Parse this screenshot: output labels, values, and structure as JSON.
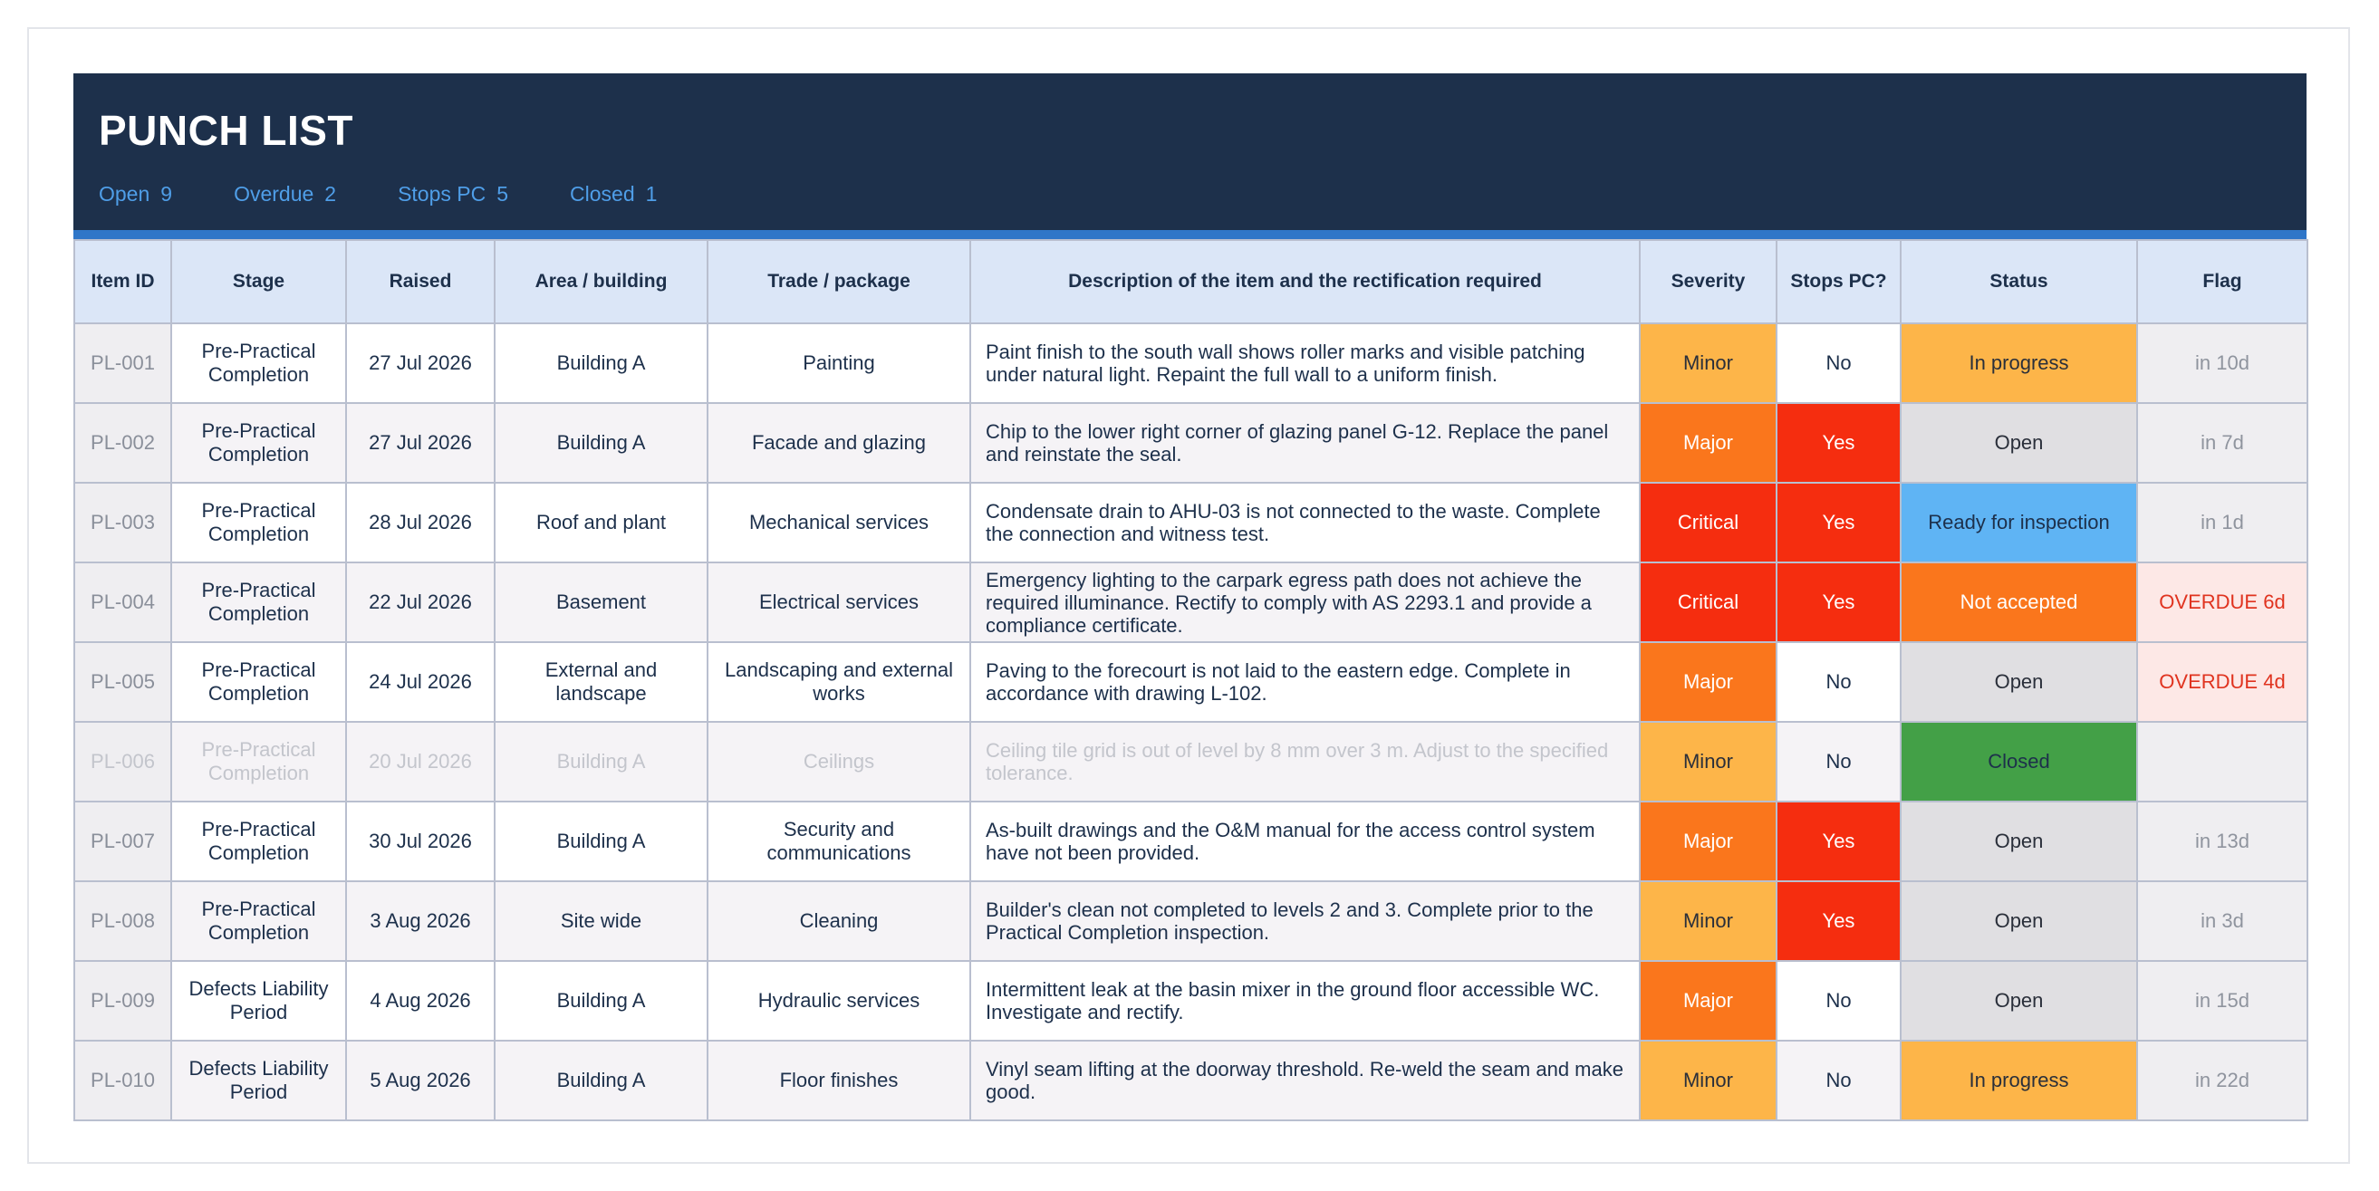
{
  "header": {
    "title": "PUNCH LIST",
    "stats": [
      {
        "label": "Open",
        "value": "9"
      },
      {
        "label": "Overdue",
        "value": "2"
      },
      {
        "label": "Stops PC",
        "value": "5"
      },
      {
        "label": "Closed",
        "value": "1"
      }
    ]
  },
  "colors": {
    "banner": "#1d304b",
    "accent": "#2f76c8",
    "stat_text": "#4f9ee8",
    "minor": "#fdb549",
    "major": "#fa761c",
    "critical": "#f52d0f",
    "open": "#e0dfe2",
    "ready": "#5fb4f4",
    "closed": "#43a047",
    "overdue_text": "#e0331f"
  },
  "table": {
    "columns": [
      "Item ID",
      "Stage",
      "Raised",
      "Area / building",
      "Trade / package",
      "Description of the item and the rectification required",
      "Severity",
      "Stops PC?",
      "Status",
      "Flag"
    ],
    "rows": [
      {
        "id": "PL-001",
        "stage": "Pre-Practical Completion",
        "raised": "27 Jul 2026",
        "area": "Building A",
        "trade": "Painting",
        "description": "Paint finish to the south wall shows roller marks and visible patching under natural light. Repaint the full wall to a uniform finish.",
        "severity": "Minor",
        "stops_pc": "No",
        "status": "In progress",
        "flag": "in 10d"
      },
      {
        "id": "PL-002",
        "stage": "Pre-Practical Completion",
        "raised": "27 Jul 2026",
        "area": "Building A",
        "trade": "Facade and glazing",
        "description": "Chip to the lower right corner of glazing panel G-12. Replace the panel and reinstate the seal.",
        "severity": "Major",
        "stops_pc": "Yes",
        "status": "Open",
        "flag": "in 7d"
      },
      {
        "id": "PL-003",
        "stage": "Pre-Practical Completion",
        "raised": "28 Jul 2026",
        "area": "Roof and plant",
        "trade": "Mechanical services",
        "description": "Condensate drain to AHU-03 is not connected to the waste. Complete the connection and witness test.",
        "severity": "Critical",
        "stops_pc": "Yes",
        "status": "Ready for inspection",
        "flag": "in 1d"
      },
      {
        "id": "PL-004",
        "stage": "Pre-Practical Completion",
        "raised": "22 Jul 2026",
        "area": "Basement",
        "trade": "Electrical services",
        "description": "Emergency lighting to the carpark egress path does not achieve the required illuminance. Rectify to comply with AS 2293.1 and provide a compliance certificate.",
        "severity": "Critical",
        "stops_pc": "Yes",
        "status": "Not accepted",
        "flag": "OVERDUE 6d"
      },
      {
        "id": "PL-005",
        "stage": "Pre-Practical Completion",
        "raised": "24 Jul 2026",
        "area": "External and landscape",
        "trade": "Landscaping and external works",
        "description": "Paving to the forecourt is not laid to the eastern edge. Complete in accordance with drawing L-102.",
        "severity": "Major",
        "stops_pc": "No",
        "status": "Open",
        "flag": "OVERDUE 4d"
      },
      {
        "id": "PL-006",
        "stage": "Pre-Practical Completion",
        "raised": "20 Jul 2026",
        "area": "Building A",
        "trade": "Ceilings",
        "description": "Ceiling tile grid is out of level by 8 mm over 3 m. Adjust to the specified tolerance.",
        "severity": "Minor",
        "stops_pc": "No",
        "status": "Closed",
        "flag": ""
      },
      {
        "id": "PL-007",
        "stage": "Pre-Practical Completion",
        "raised": "30 Jul 2026",
        "area": "Building A",
        "trade": "Security and communications",
        "description": "As-built drawings and the O&M manual for the access control system have not been provided.",
        "severity": "Major",
        "stops_pc": "Yes",
        "status": "Open",
        "flag": "in 13d"
      },
      {
        "id": "PL-008",
        "stage": "Pre-Practical Completion",
        "raised": "3 Aug 2026",
        "area": "Site wide",
        "trade": "Cleaning",
        "description": "Builder's clean not completed to levels 2 and 3. Complete prior to the Practical Completion inspection.",
        "severity": "Minor",
        "stops_pc": "Yes",
        "status": "Open",
        "flag": "in 3d"
      },
      {
        "id": "PL-009",
        "stage": "Defects Liability Period",
        "raised": "4 Aug 2026",
        "area": "Building A",
        "trade": "Hydraulic services",
        "description": "Intermittent leak at the basin mixer in the ground floor accessible WC. Investigate and rectify.",
        "severity": "Major",
        "stops_pc": "No",
        "status": "Open",
        "flag": "in 15d"
      },
      {
        "id": "PL-010",
        "stage": "Defects Liability Period",
        "raised": "5 Aug 2026",
        "area": "Building A",
        "trade": "Floor finishes",
        "description": "Vinyl seam lifting at the doorway threshold. Re-weld the seam and make good.",
        "severity": "Minor",
        "stops_pc": "No",
        "status": "In progress",
        "flag": "in 22d"
      }
    ]
  }
}
